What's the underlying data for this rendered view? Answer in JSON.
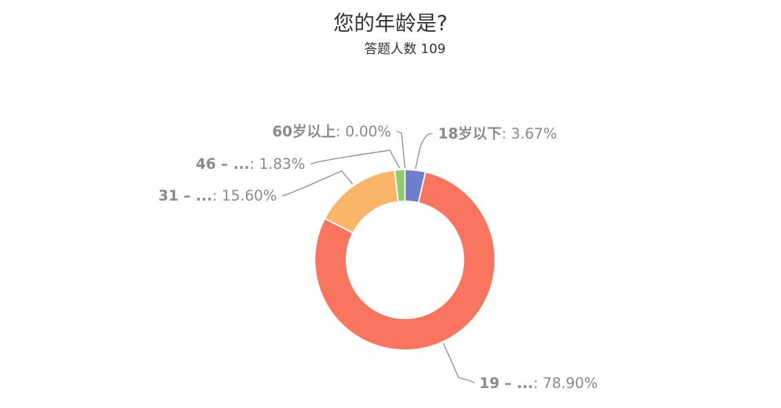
{
  "chart_data": {
    "type": "pie",
    "title": "您的年龄是?",
    "subtitle": "答题人数 109",
    "donut": true,
    "slices": [
      {
        "label": "18岁以下",
        "value": 3.67,
        "color": "#6f7fcc"
      },
      {
        "label": "19 – ...",
        "value": 78.9,
        "color": "#fa755f"
      },
      {
        "label": "31 – ...",
        "value": 15.6,
        "color": "#fbb568"
      },
      {
        "label": "46 – ...",
        "value": 1.83,
        "color": "#8fcc6d"
      },
      {
        "label": "60岁以上",
        "value": 0.0,
        "color": "#a35ec4"
      }
    ],
    "value_labels": [
      "3.67%",
      "78.90%",
      "15.60%",
      "1.83%",
      "0.00%"
    ]
  }
}
